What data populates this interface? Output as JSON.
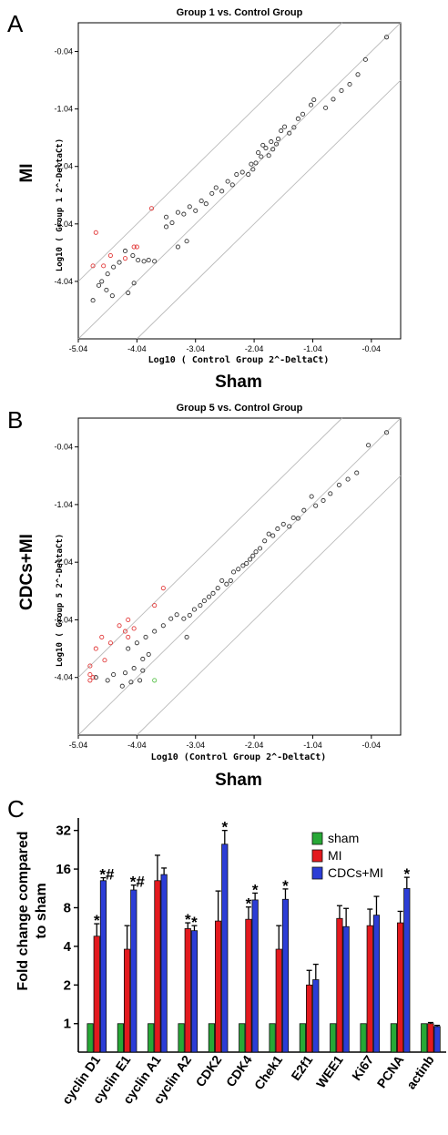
{
  "chart_data": [
    {
      "panel": "A",
      "type": "scatter",
      "title": "Group 1 vs. Control Group",
      "xlabel": "Log10 ( Control Group 2^-DeltaCt)",
      "ylabel": "Log10 ( Group 1 2^-DeltaCt)",
      "side_xlabel": "Sham",
      "side_ylabel": "MI",
      "xlim": [
        -5.04,
        0.46
      ],
      "ylim": [
        -5.04,
        0.46
      ],
      "xticks": [
        "-5.04",
        "-4.04",
        "-3.04",
        "-2.04",
        "-1.04",
        "-0.04"
      ],
      "yticks": [
        "-0.04",
        "-1.04",
        "-2.04",
        "-3.04",
        "-4.04"
      ],
      "points": [
        {
          "x": 0.22,
          "y": 0.21,
          "c": "k"
        },
        {
          "x": -0.14,
          "y": -0.18,
          "c": "k"
        },
        {
          "x": -0.27,
          "y": -0.44,
          "c": "k"
        },
        {
          "x": -0.41,
          "y": -0.61,
          "c": "k"
        },
        {
          "x": -0.55,
          "y": -0.72,
          "c": "k"
        },
        {
          "x": -0.69,
          "y": -0.87,
          "c": "k"
        },
        {
          "x": -0.82,
          "y": -1.02,
          "c": "k"
        },
        {
          "x": -1.02,
          "y": -0.88,
          "c": "k"
        },
        {
          "x": -1.07,
          "y": -0.97,
          "c": "k"
        },
        {
          "x": -1.21,
          "y": -1.13,
          "c": "k"
        },
        {
          "x": -1.29,
          "y": -1.21,
          "c": "k"
        },
        {
          "x": -1.36,
          "y": -1.36,
          "c": "k"
        },
        {
          "x": -1.44,
          "y": -1.46,
          "c": "k"
        },
        {
          "x": -1.52,
          "y": -1.35,
          "c": "k"
        },
        {
          "x": -1.58,
          "y": -1.42,
          "c": "k"
        },
        {
          "x": -1.63,
          "y": -1.56,
          "c": "k"
        },
        {
          "x": -1.66,
          "y": -1.65,
          "c": "k"
        },
        {
          "x": -1.72,
          "y": -1.74,
          "c": "k"
        },
        {
          "x": -1.75,
          "y": -1.61,
          "c": "k"
        },
        {
          "x": -1.79,
          "y": -1.85,
          "c": "k"
        },
        {
          "x": -1.84,
          "y": -1.72,
          "c": "k"
        },
        {
          "x": -1.89,
          "y": -1.67,
          "c": "k"
        },
        {
          "x": -1.92,
          "y": -1.87,
          "c": "k"
        },
        {
          "x": -1.97,
          "y": -1.8,
          "c": "k"
        },
        {
          "x": -2.01,
          "y": -1.98,
          "c": "k"
        },
        {
          "x": -2.06,
          "y": -2.09,
          "c": "k"
        },
        {
          "x": -2.09,
          "y": -2.0,
          "c": "k"
        },
        {
          "x": -2.14,
          "y": -2.18,
          "c": "k"
        },
        {
          "x": -2.24,
          "y": -2.14,
          "c": "k"
        },
        {
          "x": -2.34,
          "y": -2.18,
          "c": "k"
        },
        {
          "x": -2.41,
          "y": -2.36,
          "c": "k"
        },
        {
          "x": -2.49,
          "y": -2.3,
          "c": "k"
        },
        {
          "x": -2.59,
          "y": -2.47,
          "c": "k"
        },
        {
          "x": -2.69,
          "y": -2.41,
          "c": "k"
        },
        {
          "x": -2.76,
          "y": -2.51,
          "c": "k"
        },
        {
          "x": -2.86,
          "y": -2.69,
          "c": "k"
        },
        {
          "x": -2.94,
          "y": -2.64,
          "c": "k"
        },
        {
          "x": -3.04,
          "y": -2.81,
          "c": "k"
        },
        {
          "x": -3.14,
          "y": -2.74,
          "c": "k"
        },
        {
          "x": -3.24,
          "y": -2.87,
          "c": "k"
        },
        {
          "x": -3.34,
          "y": -2.84,
          "c": "k"
        },
        {
          "x": -3.44,
          "y": -3.02,
          "c": "k"
        },
        {
          "x": -3.54,
          "y": -2.92,
          "c": "k"
        },
        {
          "x": -3.19,
          "y": -3.34,
          "c": "k"
        },
        {
          "x": -3.34,
          "y": -3.44,
          "c": "k"
        },
        {
          "x": -3.54,
          "y": -3.09,
          "c": "k"
        },
        {
          "x": -3.84,
          "y": -3.67,
          "c": "k"
        },
        {
          "x": -3.92,
          "y": -3.69,
          "c": "k"
        },
        {
          "x": -4.02,
          "y": -3.67,
          "c": "k"
        },
        {
          "x": -4.11,
          "y": -3.59,
          "c": "k"
        },
        {
          "x": -4.24,
          "y": -3.51,
          "c": "k"
        },
        {
          "x": -4.34,
          "y": -3.71,
          "c": "k"
        },
        {
          "x": -4.44,
          "y": -3.79,
          "c": "k"
        },
        {
          "x": -4.54,
          "y": -3.91,
          "c": "k"
        },
        {
          "x": -4.64,
          "y": -4.04,
          "c": "k"
        },
        {
          "x": -4.56,
          "y": -4.19,
          "c": "k"
        },
        {
          "x": -4.46,
          "y": -4.29,
          "c": "k"
        },
        {
          "x": -4.69,
          "y": -4.11,
          "c": "k"
        },
        {
          "x": -4.79,
          "y": -4.37,
          "c": "k"
        },
        {
          "x": -4.09,
          "y": -4.07,
          "c": "k"
        },
        {
          "x": -4.19,
          "y": -4.24,
          "c": "k"
        },
        {
          "x": -3.74,
          "y": -3.69,
          "c": "k"
        },
        {
          "x": -4.74,
          "y": -3.19,
          "c": "r"
        },
        {
          "x": -4.79,
          "y": -3.77,
          "c": "r"
        },
        {
          "x": -4.49,
          "y": -3.59,
          "c": "r"
        },
        {
          "x": -4.24,
          "y": -3.64,
          "c": "r"
        },
        {
          "x": -4.09,
          "y": -3.44,
          "c": "r"
        },
        {
          "x": -4.04,
          "y": -3.44,
          "c": "r"
        },
        {
          "x": -3.79,
          "y": -2.77,
          "c": "r"
        },
        {
          "x": -4.61,
          "y": -3.77,
          "c": "r"
        }
      ]
    },
    {
      "panel": "B",
      "type": "scatter",
      "title": "Group 5 vs. Control Group",
      "xlabel": "Log10 (Control Group 2^-DeltaCt)",
      "ylabel": "Log10 ( Group 5 2^-DeltaCt)",
      "side_xlabel": "Sham",
      "side_ylabel": "CDCs+MI",
      "xlim": [
        -5.04,
        0.46
      ],
      "ylim": [
        -5.04,
        0.46
      ],
      "xticks": [
        "-5.04",
        "-4.04",
        "-3.04",
        "-2.04",
        "-1.04",
        "-0.04"
      ],
      "yticks": [
        "-0.04",
        "-1.04",
        "-2.04",
        "-3.04",
        "-4.04"
      ],
      "points": [
        {
          "x": 0.22,
          "y": 0.21,
          "c": "k"
        },
        {
          "x": -0.09,
          "y": -0.01,
          "c": "k"
        },
        {
          "x": -0.29,
          "y": -0.49,
          "c": "k"
        },
        {
          "x": -0.44,
          "y": -0.6,
          "c": "k"
        },
        {
          "x": -0.59,
          "y": -0.7,
          "c": "k"
        },
        {
          "x": -0.74,
          "y": -0.85,
          "c": "k"
        },
        {
          "x": -0.86,
          "y": -0.97,
          "c": "k"
        },
        {
          "x": -0.99,
          "y": -1.06,
          "c": "k"
        },
        {
          "x": -1.06,
          "y": -0.9,
          "c": "k"
        },
        {
          "x": -1.19,
          "y": -1.14,
          "c": "k"
        },
        {
          "x": -1.29,
          "y": -1.28,
          "c": "k"
        },
        {
          "x": -1.37,
          "y": -1.27,
          "c": "k"
        },
        {
          "x": -1.44,
          "y": -1.42,
          "c": "k"
        },
        {
          "x": -1.54,
          "y": -1.38,
          "c": "k"
        },
        {
          "x": -1.64,
          "y": -1.46,
          "c": "k"
        },
        {
          "x": -1.72,
          "y": -1.58,
          "c": "k"
        },
        {
          "x": -1.79,
          "y": -1.55,
          "c": "k"
        },
        {
          "x": -1.86,
          "y": -1.67,
          "c": "k"
        },
        {
          "x": -1.94,
          "y": -1.8,
          "c": "k"
        },
        {
          "x": -2.01,
          "y": -1.86,
          "c": "k"
        },
        {
          "x": -2.06,
          "y": -1.93,
          "c": "k"
        },
        {
          "x": -2.11,
          "y": -1.99,
          "c": "k"
        },
        {
          "x": -2.17,
          "y": -2.06,
          "c": "k"
        },
        {
          "x": -2.23,
          "y": -2.1,
          "c": "k"
        },
        {
          "x": -2.31,
          "y": -2.16,
          "c": "k"
        },
        {
          "x": -2.39,
          "y": -2.21,
          "c": "k"
        },
        {
          "x": -2.44,
          "y": -2.36,
          "c": "k"
        },
        {
          "x": -2.51,
          "y": -2.42,
          "c": "k"
        },
        {
          "x": -2.59,
          "y": -2.36,
          "c": "k"
        },
        {
          "x": -2.66,
          "y": -2.49,
          "c": "k"
        },
        {
          "x": -2.74,
          "y": -2.58,
          "c": "k"
        },
        {
          "x": -2.81,
          "y": -2.64,
          "c": "k"
        },
        {
          "x": -2.89,
          "y": -2.71,
          "c": "k"
        },
        {
          "x": -2.96,
          "y": -2.79,
          "c": "k"
        },
        {
          "x": -3.06,
          "y": -2.86,
          "c": "k"
        },
        {
          "x": -3.14,
          "y": -2.96,
          "c": "k"
        },
        {
          "x": -3.24,
          "y": -3.02,
          "c": "k"
        },
        {
          "x": -3.36,
          "y": -2.95,
          "c": "k"
        },
        {
          "x": -3.46,
          "y": -3.02,
          "c": "k"
        },
        {
          "x": -3.59,
          "y": -3.14,
          "c": "k"
        },
        {
          "x": -3.74,
          "y": -3.24,
          "c": "k"
        },
        {
          "x": -3.89,
          "y": -3.34,
          "c": "k"
        },
        {
          "x": -4.04,
          "y": -3.44,
          "c": "k"
        },
        {
          "x": -4.19,
          "y": -3.54,
          "c": "k"
        },
        {
          "x": -3.19,
          "y": -3.34,
          "c": "k"
        },
        {
          "x": -3.84,
          "y": -3.64,
          "c": "k"
        },
        {
          "x": -3.94,
          "y": -3.72,
          "c": "k"
        },
        {
          "x": -4.09,
          "y": -3.88,
          "c": "k"
        },
        {
          "x": -4.24,
          "y": -3.96,
          "c": "k"
        },
        {
          "x": -4.44,
          "y": -3.99,
          "c": "k"
        },
        {
          "x": -4.54,
          "y": -4.09,
          "c": "k"
        },
        {
          "x": -4.74,
          "y": -4.04,
          "c": "k"
        },
        {
          "x": -4.14,
          "y": -4.12,
          "c": "k"
        },
        {
          "x": -4.29,
          "y": -4.19,
          "c": "k"
        },
        {
          "x": -3.99,
          "y": -4.09,
          "c": "k"
        },
        {
          "x": -3.94,
          "y": -3.92,
          "c": "k"
        },
        {
          "x": -4.84,
          "y": -4.09,
          "c": "r"
        },
        {
          "x": -4.84,
          "y": -3.99,
          "c": "r"
        },
        {
          "x": -4.84,
          "y": -3.84,
          "c": "r"
        },
        {
          "x": -4.74,
          "y": -3.54,
          "c": "r"
        },
        {
          "x": -4.64,
          "y": -3.34,
          "c": "r"
        },
        {
          "x": -4.59,
          "y": -3.74,
          "c": "r"
        },
        {
          "x": -4.49,
          "y": -3.44,
          "c": "r"
        },
        {
          "x": -4.34,
          "y": -3.14,
          "c": "r"
        },
        {
          "x": -4.24,
          "y": -3.24,
          "c": "r"
        },
        {
          "x": -4.19,
          "y": -3.34,
          "c": "r"
        },
        {
          "x": -4.19,
          "y": -3.04,
          "c": "r"
        },
        {
          "x": -4.09,
          "y": -3.19,
          "c": "r"
        },
        {
          "x": -3.74,
          "y": -2.79,
          "c": "r"
        },
        {
          "x": -3.59,
          "y": -2.49,
          "c": "r"
        },
        {
          "x": -4.79,
          "y": -4.04,
          "c": "r"
        },
        {
          "x": -3.74,
          "y": -4.09,
          "c": "g"
        }
      ]
    },
    {
      "panel": "C",
      "type": "bar",
      "ylabel": "Fold change compared to sham",
      "yscale": "log2",
      "ylim": [
        0.6,
        40
      ],
      "yticks": [
        1,
        2,
        4,
        8,
        16,
        32
      ],
      "categories": [
        "cyclin D1",
        "cyclin E1",
        "cyclin A1",
        "cyclin A2",
        "CDK2",
        "CDK4",
        "Chek1",
        "E2f1",
        "WEE1",
        "Ki67",
        "PCNA",
        "actinb"
      ],
      "series": [
        {
          "name": "sham",
          "values": [
            1,
            1,
            1,
            1,
            1,
            1,
            1,
            1,
            1,
            1,
            1,
            1
          ],
          "errors": [
            0,
            0,
            0,
            0,
            0,
            0,
            0,
            0,
            0,
            0,
            0,
            0
          ]
        },
        {
          "name": "MI",
          "values": [
            4.8,
            3.8,
            13,
            5.5,
            6.3,
            6.5,
            3.8,
            2.0,
            6.6,
            5.8,
            6.1,
            1.0
          ],
          "errors": [
            1.2,
            2.0,
            7.5,
            0.6,
            4.5,
            1.6,
            2.0,
            0.6,
            1.7,
            2.0,
            1.4,
            0.02
          ]
        },
        {
          "name": "CDCs+MI",
          "values": [
            13,
            11,
            14.5,
            5.3,
            25,
            9.2,
            9.3,
            2.2,
            5.7,
            7.0,
            11.3,
            0.95
          ],
          "errors": [
            0.7,
            1.0,
            1.8,
            0.5,
            7.0,
            1.2,
            1.9,
            0.7,
            2.2,
            2.8,
            2.5,
            0.02
          ]
        }
      ],
      "annotations": [
        {
          "category": "cyclin D1",
          "series": "MI",
          "text": "*"
        },
        {
          "category": "cyclin D1",
          "series": "CDCs+MI",
          "text": "*#"
        },
        {
          "category": "cyclin E1",
          "series": "CDCs+MI",
          "text": "*#"
        },
        {
          "category": "cyclin A2",
          "series": "MI",
          "text": "*"
        },
        {
          "category": "cyclin A2",
          "series": "CDCs+MI",
          "text": "*"
        },
        {
          "category": "CDK2",
          "series": "CDCs+MI",
          "text": "*"
        },
        {
          "category": "CDK4",
          "series": "MI",
          "text": "*"
        },
        {
          "category": "CDK4",
          "series": "CDCs+MI",
          "text": "*"
        },
        {
          "category": "Chek1",
          "series": "CDCs+MI",
          "text": "*"
        },
        {
          "category": "PCNA",
          "series": "CDCs+MI",
          "text": "*"
        }
      ],
      "colors": {
        "sham": "#27a836",
        "MI": "#e3191e",
        "CDCs+MI": "#2c3dd6"
      },
      "legend": "top-right"
    }
  ],
  "panels": {
    "a": "A",
    "b": "B",
    "c": "C"
  }
}
